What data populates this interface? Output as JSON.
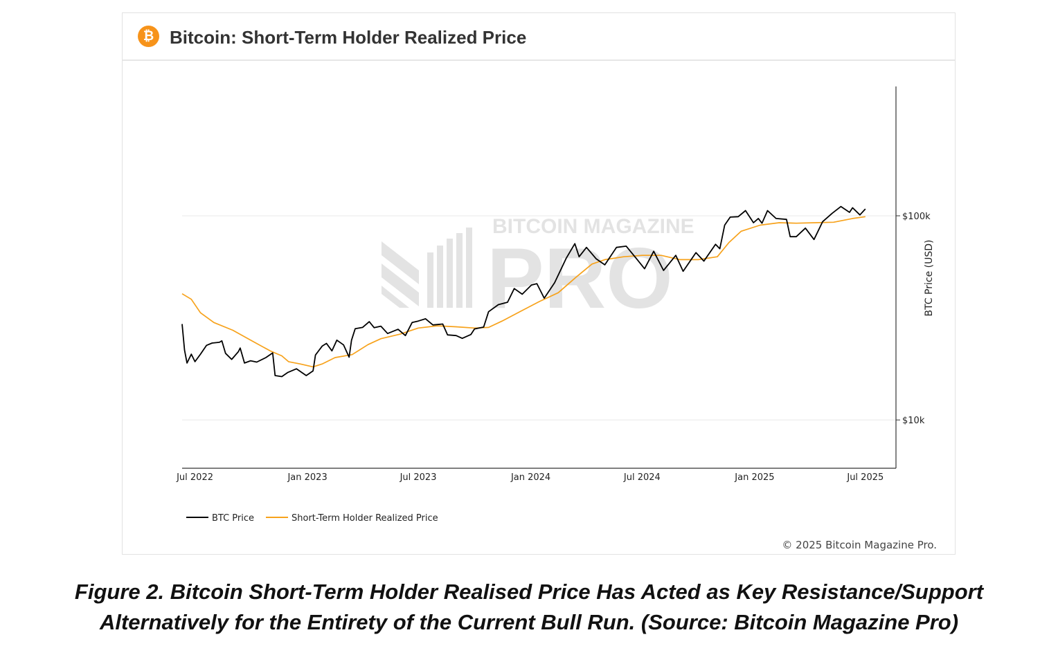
{
  "header": {
    "logo_glyph": "₿",
    "title": "Bitcoin: Short-Term Holder Realized Price"
  },
  "watermark": {
    "line1": "BITCOIN MAGAZINE",
    "line2": "PRO"
  },
  "copyright": "© 2025 Bitcoin Magazine Pro.",
  "caption": {
    "line1": "Figure 2.  Bitcoin Short-Term Holder Realised Price Has Acted as Key Resistance/Support",
    "line2": "Alternatively for the Entirety of the Current Bull Run. (Source: Bitcoin Magazine Pro)"
  },
  "colors": {
    "btc": "#000000",
    "sth": "#f7a21b",
    "accent": "#f7931a"
  },
  "chart_data": {
    "type": "line",
    "title": "Bitcoin: Short-Term Holder Realized Price",
    "ylabel": "BTC Price (USD)",
    "yscale": "log",
    "ylim": [
      5800,
      430000
    ],
    "yticks": [
      {
        "value": 10000,
        "label": "$10k"
      },
      {
        "value": 100000,
        "label": "$100k"
      }
    ],
    "xlim": [
      "2022-06-10",
      "2025-08-20"
    ],
    "xticks": [
      {
        "date": "2022-07-01",
        "label": "Jul 2022"
      },
      {
        "date": "2023-01-01",
        "label": "Jan 2023"
      },
      {
        "date": "2023-07-01",
        "label": "Jul 2023"
      },
      {
        "date": "2024-01-01",
        "label": "Jan 2024"
      },
      {
        "date": "2024-07-01",
        "label": "Jul 2024"
      },
      {
        "date": "2025-01-01",
        "label": "Jan 2025"
      },
      {
        "date": "2025-07-01",
        "label": "Jul 2025"
      }
    ],
    "grid": "horizontal",
    "legend_position": "bottom-left",
    "series": [
      {
        "name": "BTC Price",
        "color": "#000000",
        "points": [
          [
            "2022-06-10",
            29500
          ],
          [
            "2022-06-14",
            22000
          ],
          [
            "2022-06-18",
            19000
          ],
          [
            "2022-06-25",
            21000
          ],
          [
            "2022-07-01",
            19300
          ],
          [
            "2022-07-10",
            21000
          ],
          [
            "2022-07-20",
            23200
          ],
          [
            "2022-07-29",
            23800
          ],
          [
            "2022-08-10",
            24000
          ],
          [
            "2022-08-14",
            24400
          ],
          [
            "2022-08-20",
            21200
          ],
          [
            "2022-08-30",
            19800
          ],
          [
            "2022-09-10",
            21600
          ],
          [
            "2022-09-13",
            22500
          ],
          [
            "2022-09-20",
            19000
          ],
          [
            "2022-09-30",
            19500
          ],
          [
            "2022-10-10",
            19200
          ],
          [
            "2022-10-25",
            20200
          ],
          [
            "2022-11-05",
            21300
          ],
          [
            "2022-11-09",
            16500
          ],
          [
            "2022-11-20",
            16300
          ],
          [
            "2022-11-30",
            17100
          ],
          [
            "2022-12-14",
            17800
          ],
          [
            "2022-12-30",
            16500
          ],
          [
            "2023-01-10",
            17400
          ],
          [
            "2023-01-14",
            20800
          ],
          [
            "2023-01-25",
            23000
          ],
          [
            "2023-02-01",
            23700
          ],
          [
            "2023-02-10",
            21800
          ],
          [
            "2023-02-18",
            24600
          ],
          [
            "2023-03-01",
            23300
          ],
          [
            "2023-03-10",
            20300
          ],
          [
            "2023-03-14",
            24600
          ],
          [
            "2023-03-20",
            28000
          ],
          [
            "2023-04-01",
            28400
          ],
          [
            "2023-04-12",
            30300
          ],
          [
            "2023-04-20",
            28300
          ],
          [
            "2023-05-01",
            28800
          ],
          [
            "2023-05-12",
            26500
          ],
          [
            "2023-05-29",
            27800
          ],
          [
            "2023-06-10",
            25900
          ],
          [
            "2023-06-21",
            30000
          ],
          [
            "2023-07-01",
            30500
          ],
          [
            "2023-07-13",
            31300
          ],
          [
            "2023-07-25",
            29200
          ],
          [
            "2023-08-10",
            29500
          ],
          [
            "2023-08-18",
            26100
          ],
          [
            "2023-09-01",
            25900
          ],
          [
            "2023-09-11",
            25100
          ],
          [
            "2023-09-25",
            26200
          ],
          [
            "2023-10-01",
            27900
          ],
          [
            "2023-10-16",
            28500
          ],
          [
            "2023-10-24",
            33900
          ],
          [
            "2023-11-09",
            36700
          ],
          [
            "2023-11-24",
            37700
          ],
          [
            "2023-12-05",
            44000
          ],
          [
            "2023-12-18",
            41300
          ],
          [
            "2024-01-02",
            45800
          ],
          [
            "2024-01-11",
            46500
          ],
          [
            "2024-01-23",
            39500
          ],
          [
            "2024-02-09",
            47000
          ],
          [
            "2024-02-28",
            62000
          ],
          [
            "2024-03-05",
            66500
          ],
          [
            "2024-03-13",
            73000
          ],
          [
            "2024-03-20",
            63000
          ],
          [
            "2024-04-01",
            70000
          ],
          [
            "2024-04-17",
            61500
          ],
          [
            "2024-05-01",
            57500
          ],
          [
            "2024-05-20",
            70000
          ],
          [
            "2024-06-05",
            71000
          ],
          [
            "2024-06-24",
            60500
          ],
          [
            "2024-07-05",
            55000
          ],
          [
            "2024-07-20",
            67000
          ],
          [
            "2024-08-05",
            54000
          ],
          [
            "2024-08-25",
            64000
          ],
          [
            "2024-09-06",
            53500
          ],
          [
            "2024-09-27",
            66000
          ],
          [
            "2024-10-10",
            60000
          ],
          [
            "2024-10-29",
            72500
          ],
          [
            "2024-11-05",
            69000
          ],
          [
            "2024-11-13",
            90000
          ],
          [
            "2024-11-22",
            98500
          ],
          [
            "2024-12-05",
            99000
          ],
          [
            "2024-12-17",
            106000
          ],
          [
            "2024-12-30",
            92500
          ],
          [
            "2025-01-07",
            97000
          ],
          [
            "2025-01-13",
            92000
          ],
          [
            "2025-01-22",
            106000
          ],
          [
            "2025-02-05",
            97000
          ],
          [
            "2025-02-22",
            96000
          ],
          [
            "2025-02-28",
            79000
          ],
          [
            "2025-03-10",
            79000
          ],
          [
            "2025-03-25",
            87000
          ],
          [
            "2025-04-08",
            76500
          ],
          [
            "2025-04-22",
            93500
          ],
          [
            "2025-05-08",
            103000
          ],
          [
            "2025-05-22",
            111000
          ],
          [
            "2025-06-05",
            104000
          ],
          [
            "2025-06-10",
            109500
          ],
          [
            "2025-06-22",
            101000
          ],
          [
            "2025-07-01",
            108000
          ]
        ]
      },
      {
        "name": "Short-Term Holder Realized Price",
        "color": "#f7a21b",
        "points": [
          [
            "2022-06-10",
            41500
          ],
          [
            "2022-06-25",
            39000
          ],
          [
            "2022-07-10",
            33500
          ],
          [
            "2022-08-01",
            30000
          ],
          [
            "2022-09-01",
            27500
          ],
          [
            "2022-10-01",
            24500
          ],
          [
            "2022-11-01",
            21800
          ],
          [
            "2022-11-20",
            20600
          ],
          [
            "2022-12-01",
            19300
          ],
          [
            "2022-12-20",
            18800
          ],
          [
            "2023-01-10",
            18200
          ],
          [
            "2023-01-25",
            18800
          ],
          [
            "2023-02-15",
            20200
          ],
          [
            "2023-03-15",
            20900
          ],
          [
            "2023-04-10",
            23400
          ],
          [
            "2023-05-01",
            25000
          ],
          [
            "2023-06-01",
            26300
          ],
          [
            "2023-07-01",
            28200
          ],
          [
            "2023-08-01",
            28900
          ],
          [
            "2023-09-01",
            28600
          ],
          [
            "2023-10-01",
            28200
          ],
          [
            "2023-10-24",
            28400
          ],
          [
            "2023-11-15",
            30500
          ],
          [
            "2023-12-15",
            34000
          ],
          [
            "2024-01-15",
            38000
          ],
          [
            "2024-02-15",
            42000
          ],
          [
            "2024-03-15",
            50000
          ],
          [
            "2024-04-10",
            58000
          ],
          [
            "2024-05-01",
            61000
          ],
          [
            "2024-06-01",
            63000
          ],
          [
            "2024-07-01",
            64000
          ],
          [
            "2024-08-01",
            64000
          ],
          [
            "2024-09-01",
            61000
          ],
          [
            "2024-10-01",
            61000
          ],
          [
            "2024-11-01",
            63000
          ],
          [
            "2024-11-20",
            74000
          ],
          [
            "2024-12-10",
            84000
          ],
          [
            "2025-01-10",
            90000
          ],
          [
            "2025-02-10",
            92500
          ],
          [
            "2025-03-10",
            92000
          ],
          [
            "2025-04-10",
            92500
          ],
          [
            "2025-05-10",
            93000
          ],
          [
            "2025-06-10",
            97000
          ],
          [
            "2025-07-01",
            99000
          ]
        ]
      }
    ]
  }
}
